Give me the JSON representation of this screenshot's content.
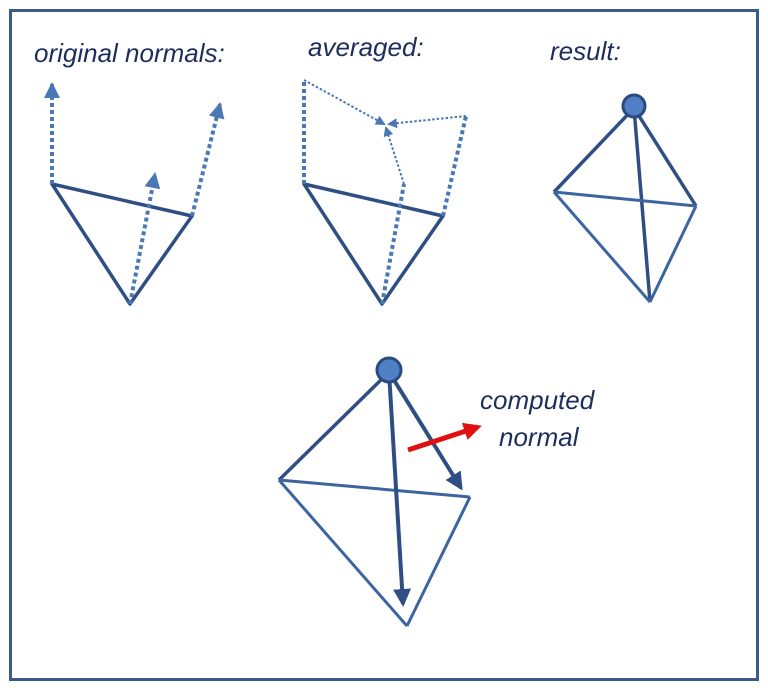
{
  "labels": {
    "original": "original normals:",
    "averaged": "averaged:",
    "result": "result:",
    "computed_line1": "computed",
    "computed_line2": "normal"
  },
  "colors": {
    "frame": "#3a5a87",
    "edge": "#2f4f84",
    "edge_light": "#3c64a0",
    "normal_dotted": "#4a78b5",
    "vertex_fill": "#4f7fc4",
    "vertex_stroke": "#2b4a80",
    "text": "#1f2d5c",
    "computed_normal": "#e01010"
  }
}
